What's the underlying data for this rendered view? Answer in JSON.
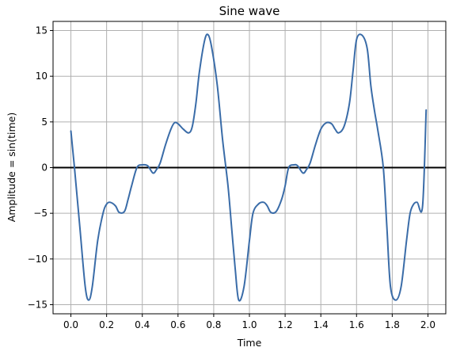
{
  "chart_data": {
    "type": "line",
    "title": "Sine wave",
    "xlabel": "Time",
    "ylabel": "Amplitude = sin(time)",
    "xlim": [
      -0.1,
      2.1
    ],
    "ylim": [
      -16,
      16
    ],
    "x_ticks": [
      0.0,
      0.2,
      0.4,
      0.6,
      0.8,
      1.0,
      1.2,
      1.4,
      1.6,
      1.8,
      2.0
    ],
    "x_tick_labels": [
      "0.0",
      "0.2",
      "0.4",
      "0.6",
      "0.8",
      "1.0",
      "1.2",
      "1.4",
      "1.6",
      "1.8",
      "2.0"
    ],
    "y_ticks": [
      -15,
      -10,
      -5,
      0,
      5,
      10,
      15
    ],
    "y_tick_labels": [
      "−15",
      "−10",
      "−5",
      "0",
      "5",
      "10",
      "15"
    ],
    "grid": true,
    "reference_line": {
      "y": 0
    },
    "series": [
      {
        "color": "#3a6ca8",
        "x": [
          0.0,
          0.02,
          0.05,
          0.08,
          0.1,
          0.12,
          0.15,
          0.18,
          0.2,
          0.22,
          0.25,
          0.27,
          0.3,
          0.32,
          0.34,
          0.37,
          0.4,
          0.43,
          0.46,
          0.48,
          0.5,
          0.53,
          0.56,
          0.58,
          0.6,
          0.63,
          0.66,
          0.68,
          0.7,
          0.72,
          0.75,
          0.77,
          0.79,
          0.82,
          0.85,
          0.88,
          0.9,
          0.92,
          0.94,
          0.97,
          1.0,
          1.02,
          1.05,
          1.08,
          1.1,
          1.12,
          1.15,
          1.18,
          1.2,
          1.22,
          1.25,
          1.27,
          1.3,
          1.32,
          1.34,
          1.37,
          1.4,
          1.43,
          1.46,
          1.48,
          1.5,
          1.53,
          1.56,
          1.58,
          1.6,
          1.63,
          1.66,
          1.68,
          1.7,
          1.72,
          1.75,
          1.77,
          1.79,
          1.82,
          1.85,
          1.88,
          1.9,
          1.92,
          1.94,
          1.97,
          1.99
        ],
        "y": [
          4.0,
          0.0,
          -6.5,
          -13.0,
          -14.5,
          -13.0,
          -8.0,
          -5.0,
          -4.0,
          -3.8,
          -4.2,
          -4.9,
          -4.8,
          -3.5,
          -2.0,
          0.0,
          0.3,
          0.2,
          -0.6,
          -0.2,
          0.5,
          2.5,
          4.2,
          4.9,
          4.8,
          4.2,
          3.8,
          4.5,
          7.0,
          10.5,
          14.0,
          14.5,
          13.0,
          9.0,
          3.0,
          -2.0,
          -6.5,
          -11.0,
          -14.5,
          -13.0,
          -8.0,
          -5.0,
          -4.0,
          -3.8,
          -4.2,
          -4.9,
          -4.8,
          -3.5,
          -2.0,
          0.0,
          0.3,
          0.2,
          -0.6,
          -0.2,
          0.5,
          2.5,
          4.2,
          4.9,
          4.8,
          4.2,
          3.8,
          4.5,
          7.0,
          10.5,
          14.0,
          14.5,
          13.0,
          9.0,
          6.3,
          4.0,
          0.0,
          -6.5,
          -13.0,
          -14.5,
          -13.0,
          -8.0,
          -5.0,
          -4.0,
          -3.8,
          -4.2,
          6.3
        ]
      }
    ]
  }
}
